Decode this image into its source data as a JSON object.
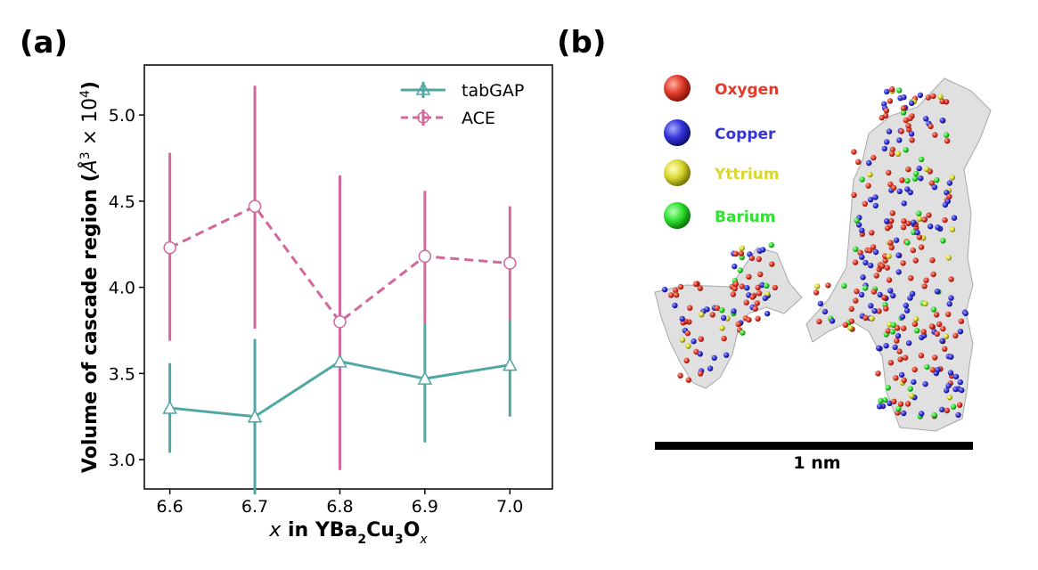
{
  "panel_a_label": "(a)",
  "panel_b_label": "(b)",
  "colors": {
    "tabGAP": "#4fa7a3",
    "ACE": "#d3679b",
    "Oxygen": "#e03a2a",
    "Copper": "#3535d8",
    "Yttrium": "#d8d830",
    "Barium": "#30e030"
  },
  "chart_data": {
    "type": "line",
    "xlabel": "x in YBa2Cu3Ox",
    "ylabel": "Volume of cascade region (Å3 × 104)",
    "x": [
      6.6,
      6.7,
      6.8,
      6.9,
      7.0
    ],
    "xticks": [
      "6.6",
      "6.7",
      "6.8",
      "6.9",
      "7.0"
    ],
    "yticks": [
      "3.0",
      "3.5",
      "4.0",
      "4.5",
      "5.0"
    ],
    "xlim": [
      6.57,
      7.05
    ],
    "ylim": [
      2.83,
      5.29
    ],
    "legend_position": "top-right",
    "series": [
      {
        "name": "tabGAP",
        "marker": "triangle",
        "linestyle": "solid",
        "values": [
          3.3,
          3.25,
          3.57,
          3.47,
          3.55
        ],
        "err_low": [
          3.04,
          2.8,
          3.57,
          3.1,
          3.25
        ],
        "err_high": [
          3.56,
          3.7,
          3.57,
          3.79,
          3.81
        ]
      },
      {
        "name": "ACE",
        "marker": "circle",
        "linestyle": "dashed",
        "values": [
          4.23,
          4.47,
          3.8,
          4.18,
          4.14
        ],
        "err_low": [
          3.69,
          3.76,
          2.94,
          3.79,
          3.8
        ],
        "err_high": [
          4.78,
          5.17,
          4.65,
          4.56,
          4.47
        ]
      }
    ]
  },
  "panel_b": {
    "legend": [
      {
        "name": "Oxygen",
        "color_key": "Oxygen"
      },
      {
        "name": "Copper",
        "color_key": "Copper"
      },
      {
        "name": "Yttrium",
        "color_key": "Yttrium"
      },
      {
        "name": "Barium",
        "color_key": "Barium"
      }
    ],
    "scale_bar_label": "1 nm"
  }
}
